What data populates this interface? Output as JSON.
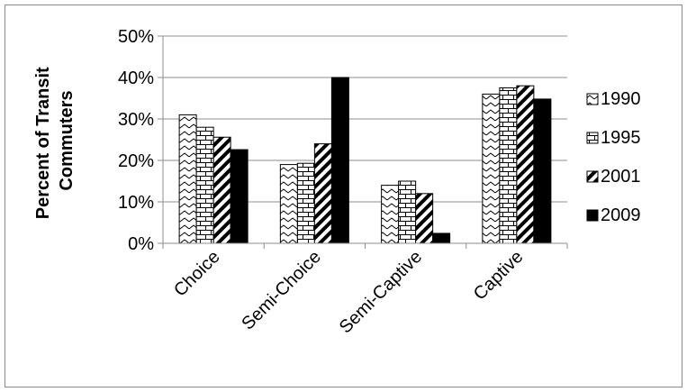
{
  "chart_data": {
    "type": "bar",
    "title": "",
    "xlabel": "",
    "ylabel": [
      "Percent of Transit",
      "Commuters"
    ],
    "categories": [
      "Choice",
      "Semi-Choice",
      "Semi-Captive",
      "Captive"
    ],
    "series": [
      {
        "name": "1990",
        "pattern": "zigzag",
        "values": [
          31,
          19,
          14,
          36
        ]
      },
      {
        "name": "1995",
        "pattern": "brick",
        "values": [
          28,
          19.3,
          15,
          37.5
        ]
      },
      {
        "name": "2001",
        "pattern": "diagonal",
        "values": [
          25.6,
          24,
          12,
          38
        ]
      },
      {
        "name": "2009",
        "pattern": "solid",
        "values": [
          22.6,
          40,
          2.4,
          34.8
        ]
      }
    ],
    "ylim": [
      0,
      50
    ],
    "yticks": [
      0,
      10,
      20,
      30,
      40,
      50
    ],
    "ytick_labels": [
      "0%",
      "10%",
      "20%",
      "30%",
      "40%",
      "50%"
    ],
    "grid": true,
    "legend_position": "right",
    "colors": {
      "bar_stroke": "#000000",
      "grid": "#8c8c8c",
      "solid": "#000000"
    }
  }
}
